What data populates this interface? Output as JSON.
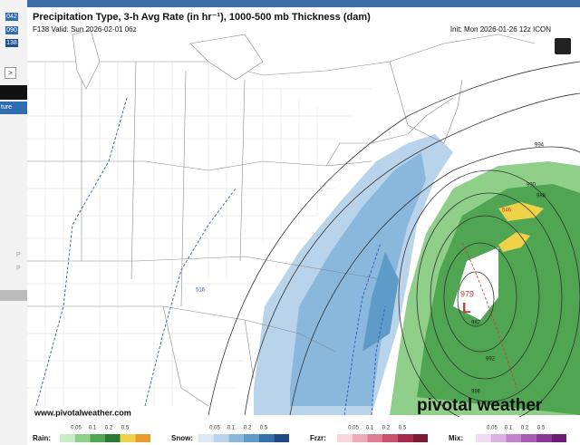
{
  "sidebar": {
    "runs": [
      "042",
      "090",
      "138"
    ],
    "tab": "ture",
    "arrow": ">",
    "marks": [
      "P",
      "P"
    ]
  },
  "map": {
    "title": "Precipitation Type, 3-h Avg Rate (in hr⁻¹), 1000-500 mb Thickness (dam)",
    "valid": "F138 Valid: Sun 2026-02-01 06z",
    "init": "Init: Mon 2026-01-26 12z ICON",
    "contour_labels": [
      "994",
      "990",
      "988",
      "546",
      "979",
      "982",
      "992",
      "996",
      "516"
    ],
    "low": "L",
    "watermark": "pivotal weather",
    "url": "www.pivotalweather.com"
  },
  "legend": {
    "groups": [
      {
        "name": "Rain:",
        "ticks": [
          "0.05",
          "0.1",
          "0.2",
          "0.5"
        ]
      },
      {
        "name": "Snow:",
        "ticks": [
          "0.05",
          "0.1",
          "0.2",
          "0.5"
        ]
      },
      {
        "name": "Frzr:",
        "ticks": [
          "0.05",
          "0.1",
          "0.2",
          "0.5"
        ]
      },
      {
        "name": "Mix:",
        "ticks": [
          "0.05",
          "0.1",
          "0.2",
          "0.5"
        ]
      }
    ]
  }
}
